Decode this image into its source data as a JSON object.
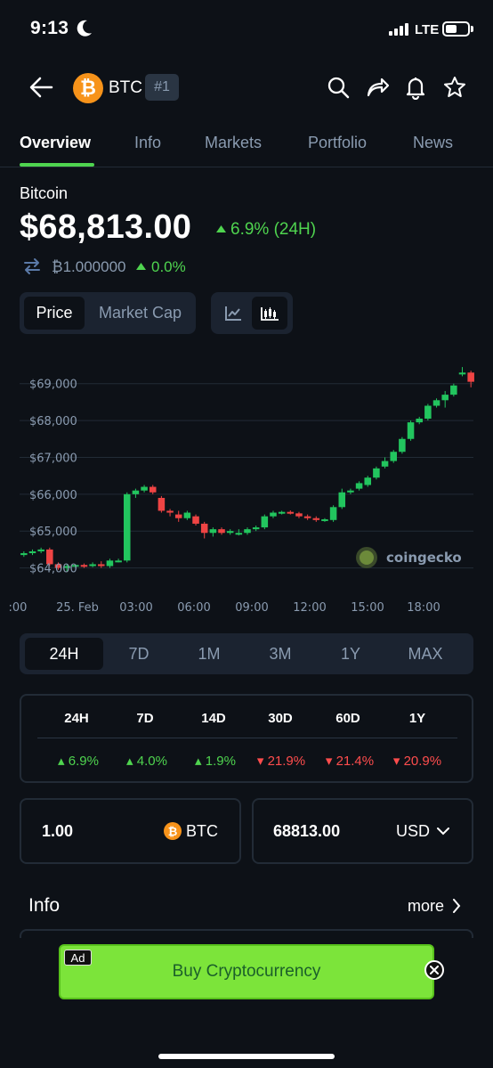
{
  "status_bar": {
    "time": "9:13",
    "network": "LTE"
  },
  "header": {
    "symbol": "BTC",
    "rank": "#1",
    "logo_glyph": "₿"
  },
  "tabs": [
    {
      "label": "Overview",
      "active": true
    },
    {
      "label": "Info",
      "active": false
    },
    {
      "label": "Markets",
      "active": false
    },
    {
      "label": "Portfolio",
      "active": false
    },
    {
      "label": "News",
      "active": false
    }
  ],
  "coin": {
    "name": "Bitcoin",
    "price": "$68,813.00",
    "change_24h": "6.9% (24H)",
    "btc_price": "₿1.000000",
    "btc_change": "0.0%"
  },
  "toggle": {
    "price": "Price",
    "market_cap": "Market Cap"
  },
  "chart_data": {
    "type": "candlestick",
    "watermark": "coingecko",
    "y_ticks": [
      "$69,000",
      "$68,000",
      "$67,000",
      "$66,000",
      "$65,000",
      "$64,000"
    ],
    "x_ticks": [
      ":00",
      "25. Feb",
      "03:00",
      "06:00",
      "09:00",
      "12:00",
      "15:00",
      "18:00"
    ],
    "ylim": [
      63700,
      69500
    ],
    "colors": {
      "up": "#22c55e",
      "down": "#ef4444"
    },
    "candles": [
      {
        "o": 64350,
        "h": 64450,
        "l": 64300,
        "c": 64400
      },
      {
        "o": 64400,
        "h": 64500,
        "l": 64350,
        "c": 64450
      },
      {
        "o": 64450,
        "h": 64550,
        "l": 64400,
        "c": 64500
      },
      {
        "o": 64500,
        "h": 64550,
        "l": 64050,
        "c": 64100
      },
      {
        "o": 64100,
        "h": 64150,
        "l": 63950,
        "c": 64000
      },
      {
        "o": 64000,
        "h": 64100,
        "l": 63900,
        "c": 64050
      },
      {
        "o": 64050,
        "h": 64100,
        "l": 64000,
        "c": 64080
      },
      {
        "o": 64080,
        "h": 64120,
        "l": 64000,
        "c": 64050
      },
      {
        "o": 64050,
        "h": 64150,
        "l": 64020,
        "c": 64100
      },
      {
        "o": 64100,
        "h": 64180,
        "l": 64000,
        "c": 64050
      },
      {
        "o": 64050,
        "h": 64250,
        "l": 64000,
        "c": 64200
      },
      {
        "o": 64200,
        "h": 64250,
        "l": 64150,
        "c": 64200
      },
      {
        "o": 64200,
        "h": 66050,
        "l": 64150,
        "c": 66000
      },
      {
        "o": 66000,
        "h": 66150,
        "l": 65900,
        "c": 66100
      },
      {
        "o": 66100,
        "h": 66250,
        "l": 66050,
        "c": 66200
      },
      {
        "o": 66200,
        "h": 66250,
        "l": 66000,
        "c": 66050
      },
      {
        "o": 65900,
        "h": 65950,
        "l": 65500,
        "c": 65550
      },
      {
        "o": 65550,
        "h": 65600,
        "l": 65400,
        "c": 65500
      },
      {
        "o": 65450,
        "h": 65550,
        "l": 65250,
        "c": 65350
      },
      {
        "o": 65350,
        "h": 65550,
        "l": 65300,
        "c": 65500
      },
      {
        "o": 65400,
        "h": 65450,
        "l": 65150,
        "c": 65200
      },
      {
        "o": 65200,
        "h": 65250,
        "l": 64800,
        "c": 64950
      },
      {
        "o": 64950,
        "h": 65100,
        "l": 64850,
        "c": 65050
      },
      {
        "o": 65050,
        "h": 65100,
        "l": 64900,
        "c": 64950
      },
      {
        "o": 64950,
        "h": 65050,
        "l": 64900,
        "c": 65000
      },
      {
        "o": 64950,
        "h": 65050,
        "l": 64880,
        "c": 64950
      },
      {
        "o": 64950,
        "h": 65100,
        "l": 64900,
        "c": 65050
      },
      {
        "o": 65050,
        "h": 65150,
        "l": 65000,
        "c": 65100
      },
      {
        "o": 65100,
        "h": 65450,
        "l": 65050,
        "c": 65400
      },
      {
        "o": 65400,
        "h": 65550,
        "l": 65350,
        "c": 65500
      },
      {
        "o": 65500,
        "h": 65550,
        "l": 65450,
        "c": 65520
      },
      {
        "o": 65520,
        "h": 65560,
        "l": 65450,
        "c": 65480
      },
      {
        "o": 65480,
        "h": 65520,
        "l": 65350,
        "c": 65400
      },
      {
        "o": 65400,
        "h": 65450,
        "l": 65300,
        "c": 65350
      },
      {
        "o": 65350,
        "h": 65400,
        "l": 65250,
        "c": 65300
      },
      {
        "o": 65300,
        "h": 65350,
        "l": 65250,
        "c": 65320
      },
      {
        "o": 65300,
        "h": 65700,
        "l": 65250,
        "c": 65650
      },
      {
        "o": 65650,
        "h": 66150,
        "l": 65600,
        "c": 66050
      },
      {
        "o": 66050,
        "h": 66150,
        "l": 66000,
        "c": 66100
      },
      {
        "o": 66150,
        "h": 66350,
        "l": 66100,
        "c": 66300
      },
      {
        "o": 66250,
        "h": 66500,
        "l": 66200,
        "c": 66450
      },
      {
        "o": 66450,
        "h": 66750,
        "l": 66400,
        "c": 66700
      },
      {
        "o": 66750,
        "h": 67000,
        "l": 66700,
        "c": 66900
      },
      {
        "o": 66900,
        "h": 67200,
        "l": 66850,
        "c": 67150
      },
      {
        "o": 67150,
        "h": 67550,
        "l": 67100,
        "c": 67500
      },
      {
        "o": 67500,
        "h": 68000,
        "l": 67450,
        "c": 67950
      },
      {
        "o": 67950,
        "h": 68100,
        "l": 67900,
        "c": 68050
      },
      {
        "o": 68050,
        "h": 68450,
        "l": 68000,
        "c": 68400
      },
      {
        "o": 68400,
        "h": 68600,
        "l": 68350,
        "c": 68550
      },
      {
        "o": 68550,
        "h": 68800,
        "l": 68350,
        "c": 68700
      },
      {
        "o": 68700,
        "h": 69000,
        "l": 68650,
        "c": 68950
      },
      {
        "o": 69250,
        "h": 69450,
        "l": 69200,
        "c": 69300
      },
      {
        "o": 69300,
        "h": 69350,
        "l": 68900,
        "c": 69050
      }
    ]
  },
  "ranges": [
    {
      "label": "24H",
      "selected": true
    },
    {
      "label": "7D",
      "selected": false
    },
    {
      "label": "1M",
      "selected": false
    },
    {
      "label": "3M",
      "selected": false
    },
    {
      "label": "1Y",
      "selected": false
    },
    {
      "label": "MAX",
      "selected": false
    }
  ],
  "performance": {
    "headers": [
      "24H",
      "7D",
      "14D",
      "30D",
      "60D",
      "1Y"
    ],
    "values": [
      {
        "text": "6.9%",
        "dir": "up"
      },
      {
        "text": "4.0%",
        "dir": "up"
      },
      {
        "text": "1.9%",
        "dir": "up"
      },
      {
        "text": "21.9%",
        "dir": "down"
      },
      {
        "text": "21.4%",
        "dir": "down"
      },
      {
        "text": "20.9%",
        "dir": "down"
      }
    ]
  },
  "converter": {
    "crypto_amount": "1.00",
    "crypto_symbol": "BTC",
    "fiat_amount": "68813.00",
    "fiat_currency": "USD"
  },
  "info": {
    "title": "Info",
    "more": "more"
  },
  "ad": {
    "label": "Ad",
    "text": "Buy Cryptocurrency"
  },
  "colors": {
    "green": "#4fd44f",
    "red": "#ff4d4d",
    "accent": "#7ce43a",
    "bitcoin": "#f7931a"
  }
}
